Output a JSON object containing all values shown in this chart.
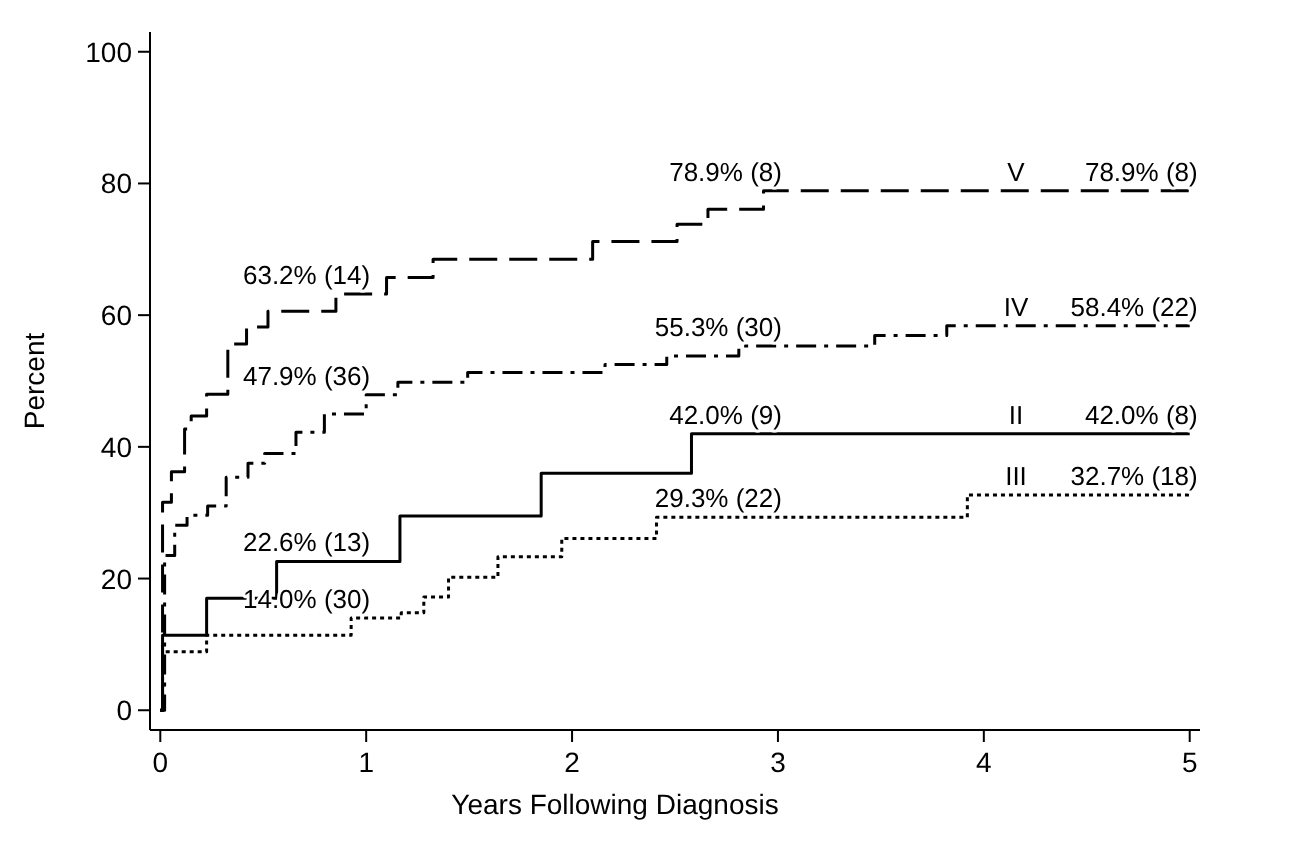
{
  "chart_data": {
    "type": "step",
    "xlabel": "Years Following Diagnosis",
    "ylabel": "Percent",
    "xlim": [
      -0.05,
      5.05
    ],
    "ylim": [
      -3,
      103
    ],
    "xticks": [
      0,
      1,
      2,
      3,
      4,
      5
    ],
    "yticks": [
      0,
      20,
      40,
      60,
      80,
      100
    ],
    "grid": false,
    "legend": false,
    "marker": "none",
    "series": [
      {
        "name": "V",
        "color": "#000000",
        "line_style": "dashed",
        "x": [
          0,
          0.011,
          0.054,
          0.118,
          0.15,
          0.225,
          0.328,
          0.419,
          0.523,
          0.853,
          1.099,
          1.325,
          2.1,
          2.51,
          2.66,
          2.93,
          5
        ],
        "values": [
          0,
          31.6,
          36.2,
          42.7,
          44.7,
          48,
          55.6,
          58.2,
          60.6,
          63.2,
          65.7,
          68.5,
          71.2,
          73.8,
          76.1,
          78.9,
          78.9
        ]
      },
      {
        "name": "IV",
        "color": "#000000",
        "line_style": "dashdot",
        "x": [
          0,
          0.021,
          0.07,
          0.13,
          0.23,
          0.32,
          0.426,
          0.507,
          0.659,
          0.797,
          1.0,
          1.154,
          1.493,
          2.16,
          2.46,
          2.81,
          3.47,
          3.82,
          5
        ],
        "values": [
          0,
          23.5,
          28.1,
          29.6,
          31,
          35.4,
          37.5,
          39,
          42.2,
          45,
          47.9,
          49.8,
          51.3,
          52.5,
          53.8,
          55.3,
          56.9,
          58.4,
          58.4
        ]
      },
      {
        "name": "II",
        "color": "#000000",
        "line_style": "solid",
        "x": [
          0,
          0.011,
          0.225,
          0.565,
          1.164,
          1.85,
          2.58,
          5
        ],
        "values": [
          0,
          11.4,
          17,
          22.6,
          29.5,
          36,
          42,
          42
        ]
      },
      {
        "name": "III",
        "color": "#000000",
        "line_style": "dotted",
        "x": [
          0,
          0.011,
          0.225,
          0.927,
          1.17,
          1.28,
          1.4,
          1.64,
          1.95,
          2.41,
          3.92,
          5
        ],
        "values": [
          0,
          8.9,
          11.4,
          14,
          14.8,
          17.2,
          20.2,
          23.3,
          26.1,
          29.3,
          32.7,
          32.7
        ]
      }
    ],
    "annotations": [
      {
        "text": "63.2% (14)",
        "x": 1,
        "y": 63.2
      },
      {
        "text": "47.9% (36)",
        "x": 1,
        "y": 47.9
      },
      {
        "text": "22.6% (13)",
        "x": 1,
        "y": 22.6
      },
      {
        "text": "14.0% (30)",
        "x": 1,
        "y": 14
      },
      {
        "text": "78.9% (8)",
        "x": 3,
        "y": 78.9
      },
      {
        "text": "55.3% (30)",
        "x": 3,
        "y": 55.3
      },
      {
        "text": "42.0% (9)",
        "x": 3,
        "y": 42
      },
      {
        "text": "29.3% (22)",
        "x": 3,
        "y": 29.3
      },
      {
        "text": "78.9% (8)",
        "x": 5,
        "y": 78.9
      },
      {
        "text": "58.4% (22)",
        "x": 5,
        "y": 58.4
      },
      {
        "text": "42.0% (8)",
        "x": 5,
        "y": 42
      },
      {
        "text": "32.7% (18)",
        "x": 5,
        "y": 32.7
      }
    ]
  }
}
